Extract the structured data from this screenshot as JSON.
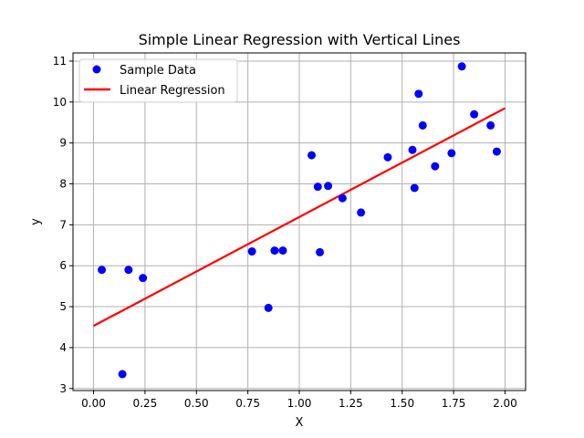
{
  "chart_data": {
    "type": "scatter",
    "title": "Simple Linear Regression with Vertical Lines",
    "xlabel": "X",
    "ylabel": "y",
    "xlim": [
      -0.1,
      2.1
    ],
    "ylim": [
      2.95,
      11.2
    ],
    "xticks": [
      0.0,
      0.25,
      0.5,
      0.75,
      1.0,
      1.25,
      1.5,
      1.75,
      2.0
    ],
    "xtick_labels": [
      "0.00",
      "0.25",
      "0.50",
      "0.75",
      "1.00",
      "1.25",
      "1.50",
      "1.75",
      "2.00"
    ],
    "yticks": [
      3,
      4,
      5,
      6,
      7,
      8,
      9,
      10,
      11
    ],
    "ytick_labels": [
      "3",
      "4",
      "5",
      "6",
      "7",
      "8",
      "9",
      "10",
      "11"
    ],
    "grid": true,
    "legend_position": "upper-left",
    "series": [
      {
        "name": "Sample Data",
        "type": "scatter",
        "color": "#0000ff",
        "x": [
          0.04,
          0.14,
          0.17,
          0.24,
          0.77,
          0.85,
          0.88,
          0.92,
          1.06,
          1.09,
          1.1,
          1.14,
          1.21,
          1.3,
          1.43,
          1.55,
          1.56,
          1.58,
          1.6,
          1.66,
          1.74,
          1.79,
          1.85,
          1.93,
          1.96
        ],
        "y": [
          5.9,
          3.35,
          5.9,
          5.7,
          6.35,
          4.97,
          6.37,
          6.37,
          8.7,
          7.93,
          6.33,
          7.95,
          7.65,
          7.3,
          8.65,
          8.83,
          7.9,
          10.2,
          9.43,
          8.43,
          8.75,
          10.87,
          9.7,
          9.43,
          8.79
        ]
      },
      {
        "name": "Linear Regression",
        "type": "line",
        "color": "#ff0000",
        "x": [
          0.0,
          2.0
        ],
        "y": [
          4.53,
          9.85
        ]
      }
    ]
  }
}
